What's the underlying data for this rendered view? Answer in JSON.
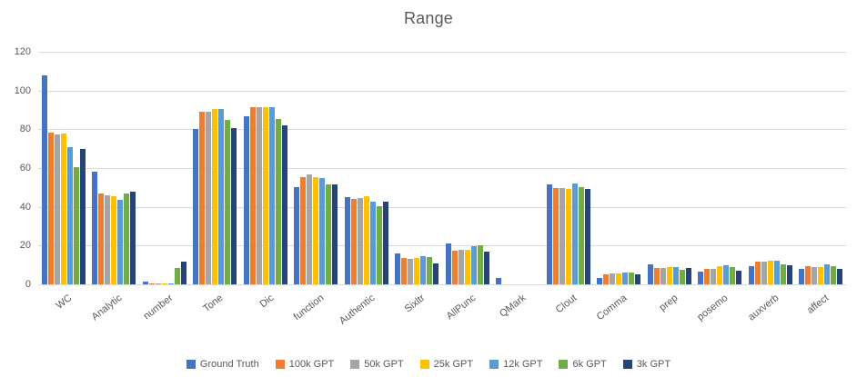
{
  "chart_data": {
    "type": "bar",
    "title": "Range",
    "xlabel": "",
    "ylabel": "",
    "ylim": [
      0,
      120
    ],
    "yticks": [
      0,
      20,
      40,
      60,
      80,
      100,
      120
    ],
    "grid": true,
    "legend_position": "bottom",
    "text_color": "#595959",
    "gridline_color": "#d9d9d9",
    "categories": [
      "WC",
      "Analytic",
      "number",
      "Tone",
      "Dic",
      "function",
      "Authentic",
      "Sixltr",
      "AllPunc",
      "QMark",
      "Clout",
      "Comma",
      "prep",
      "posemo",
      "auxverb",
      "affect"
    ],
    "series": [
      {
        "name": "Ground Truth",
        "color": "#4472C4",
        "values": [
          108,
          58,
          1.5,
          80,
          86.5,
          50,
          45,
          16,
          21,
          3.5,
          51.5,
          3.5,
          10.5,
          6.5,
          9.5,
          8
        ]
      },
      {
        "name": "100k GPT",
        "color": "#ED7D31",
        "values": [
          78.5,
          47,
          0.5,
          89,
          91.5,
          55.5,
          44,
          13.5,
          17.5,
          0,
          49.5,
          5,
          8.5,
          8,
          11.5,
          9.5
        ]
      },
      {
        "name": "50k GPT",
        "color": "#A5A5A5",
        "values": [
          77.5,
          46,
          0.5,
          89,
          91.5,
          56.5,
          44.5,
          13,
          18,
          0,
          49.5,
          5.5,
          8.5,
          8,
          11.5,
          9
        ]
      },
      {
        "name": "25k GPT",
        "color": "#FFC000",
        "values": [
          78,
          45.5,
          0.5,
          90.5,
          91.5,
          55.5,
          45.5,
          13.5,
          18,
          0,
          49,
          5.5,
          9,
          9.5,
          12,
          9
        ]
      },
      {
        "name": "12k GPT",
        "color": "#5B9BD5",
        "values": [
          71,
          43.5,
          0.5,
          90.5,
          91.5,
          55,
          42.5,
          14.5,
          19.5,
          0,
          52,
          6,
          9,
          10,
          12,
          10.5
        ]
      },
      {
        "name": "6k GPT",
        "color": "#70AD47",
        "values": [
          60.5,
          47,
          8.5,
          85,
          85.5,
          51.5,
          40.5,
          14,
          20,
          0,
          50,
          6,
          7.5,
          9,
          10.5,
          9.5
        ]
      },
      {
        "name": "3k GPT",
        "color": "#264478",
        "values": [
          70,
          48,
          11.5,
          80.5,
          82,
          51.5,
          42.5,
          11,
          17,
          0,
          49,
          5,
          8.5,
          7,
          10,
          8
        ]
      }
    ]
  }
}
